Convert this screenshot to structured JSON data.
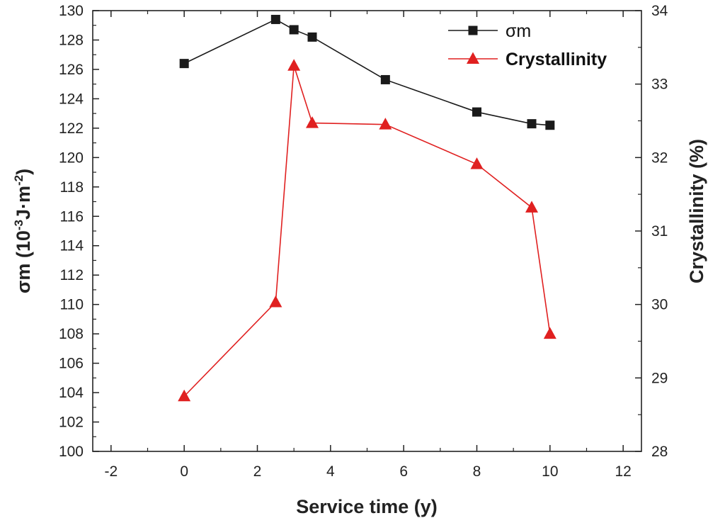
{
  "chart_data": {
    "type": "line",
    "xlabel": "Service time (y)",
    "ylabel_left": {
      "main": "σm (10",
      "sup1": "-3",
      "mid": "J·m",
      "sup2": "-2",
      "end": ")"
    },
    "ylabel_right": "Crystallinity (%)",
    "xlim": [
      -2.5,
      12.5
    ],
    "ylim_left": [
      100,
      130
    ],
    "ylim_right": [
      28,
      34
    ],
    "x_ticks": [
      -2,
      0,
      2,
      4,
      6,
      8,
      10,
      12
    ],
    "y_left_ticks": [
      100,
      102,
      104,
      106,
      108,
      110,
      112,
      114,
      116,
      118,
      120,
      122,
      124,
      126,
      128,
      130
    ],
    "y_right_ticks": [
      28,
      29,
      30,
      31,
      32,
      33,
      34
    ],
    "grid": false,
    "legend_position": "top-right",
    "series": [
      {
        "name": "σm",
        "axis": "left",
        "color": "#1a1a1a",
        "marker": "square",
        "x": [
          0,
          2.5,
          3,
          3.5,
          5.5,
          8,
          9.5,
          10
        ],
        "values": [
          126.4,
          129.4,
          128.7,
          128.2,
          125.3,
          123.1,
          122.3,
          122.2
        ]
      },
      {
        "name": "Crystallinity",
        "axis": "right",
        "color": "#e02020",
        "marker": "triangle",
        "x": [
          0,
          2.5,
          3,
          3.5,
          5.5,
          8,
          9.5,
          10
        ],
        "values": [
          28.75,
          30.03,
          33.25,
          32.47,
          32.45,
          31.91,
          31.32,
          29.6
        ]
      }
    ]
  }
}
